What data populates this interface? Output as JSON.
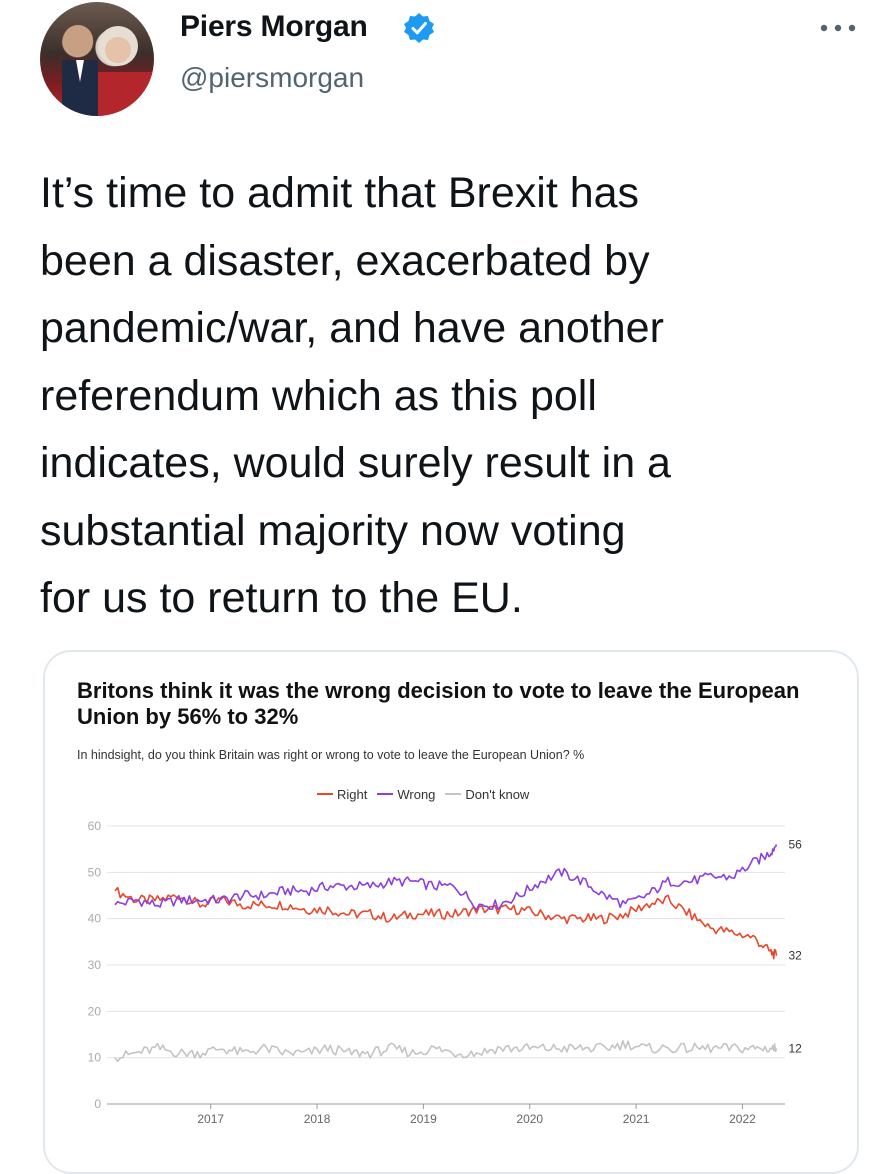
{
  "tweet": {
    "author_name": "Piers Morgan",
    "handle": "@piersmorgan",
    "text": "It’s time to admit that Brexit has\nbeen a disaster, exacerbated by\npandemic/war, and have another\nreferendum which as this poll\nindicates, would surely result in a\nsubstantial majority now voting\nfor us to return to the EU."
  },
  "colors": {
    "right": "#e8472b",
    "wrong": "#8c3fe0",
    "dont_know": "#c4c4c4",
    "verified": "#1d9bf0"
  },
  "chart_data": {
    "type": "line",
    "title": "Britons think it was the wrong decision to vote to leave the European Union by 56% to 32%",
    "subtitle": "In hindsight, do you think Britain was right or wrong to vote to leave the European Union? %",
    "ylim": [
      0,
      60
    ],
    "y_ticks": [
      "0",
      "10",
      "20",
      "30",
      "40",
      "50",
      "60"
    ],
    "x_ticks": [
      "2017",
      "2018",
      "2019",
      "2020",
      "2021",
      "2022"
    ],
    "xlim": [
      2016.6,
      2022.9
    ],
    "grid": true,
    "legend_position": "top",
    "series": [
      {
        "name": "Right",
        "color": "#e8472b",
        "end_label": "32",
        "points": [
          [
            2016.6,
            46
          ],
          [
            2016.8,
            44
          ],
          [
            2017.0,
            44
          ],
          [
            2017.2,
            45
          ],
          [
            2017.4,
            43
          ],
          [
            2017.6,
            44
          ],
          [
            2017.8,
            43
          ],
          [
            2018.0,
            43
          ],
          [
            2018.2,
            43
          ],
          [
            2018.4,
            42
          ],
          [
            2018.6,
            42
          ],
          [
            2018.8,
            41
          ],
          [
            2019.0,
            41
          ],
          [
            2019.2,
            40
          ],
          [
            2019.4,
            41
          ],
          [
            2019.6,
            41
          ],
          [
            2019.8,
            41
          ],
          [
            2020.0,
            42
          ],
          [
            2020.2,
            42
          ],
          [
            2020.4,
            42
          ],
          [
            2020.6,
            41
          ],
          [
            2020.8,
            40
          ],
          [
            2021.0,
            40
          ],
          [
            2021.2,
            40
          ],
          [
            2021.4,
            41
          ],
          [
            2021.6,
            43
          ],
          [
            2021.8,
            44
          ],
          [
            2022.0,
            41
          ],
          [
            2022.2,
            38
          ],
          [
            2022.4,
            37
          ],
          [
            2022.6,
            36
          ],
          [
            2022.75,
            33
          ],
          [
            2022.82,
            32
          ]
        ]
      },
      {
        "name": "Wrong",
        "color": "#8c3fe0",
        "end_label": "56",
        "points": [
          [
            2016.6,
            43
          ],
          [
            2016.8,
            44
          ],
          [
            2017.0,
            43
          ],
          [
            2017.2,
            44
          ],
          [
            2017.4,
            44
          ],
          [
            2017.6,
            44
          ],
          [
            2017.8,
            45
          ],
          [
            2018.0,
            45
          ],
          [
            2018.2,
            46
          ],
          [
            2018.4,
            46
          ],
          [
            2018.6,
            47
          ],
          [
            2018.8,
            47
          ],
          [
            2019.0,
            47
          ],
          [
            2019.2,
            48
          ],
          [
            2019.4,
            48
          ],
          [
            2019.6,
            47
          ],
          [
            2019.8,
            47
          ],
          [
            2020.0,
            43
          ],
          [
            2020.2,
            43
          ],
          [
            2020.4,
            45
          ],
          [
            2020.6,
            48
          ],
          [
            2020.8,
            50
          ],
          [
            2021.0,
            48
          ],
          [
            2021.2,
            45
          ],
          [
            2021.4,
            43
          ],
          [
            2021.6,
            45
          ],
          [
            2021.8,
            48
          ],
          [
            2022.0,
            48
          ],
          [
            2022.2,
            49
          ],
          [
            2022.4,
            49
          ],
          [
            2022.6,
            52
          ],
          [
            2022.75,
            54
          ],
          [
            2022.82,
            56
          ]
        ]
      },
      {
        "name": "Don't know",
        "color": "#c4c4c4",
        "end_label": "12",
        "points": [
          [
            2016.6,
            10
          ],
          [
            2016.8,
            11
          ],
          [
            2017.0,
            12
          ],
          [
            2017.2,
            11
          ],
          [
            2017.4,
            11
          ],
          [
            2017.6,
            12
          ],
          [
            2017.8,
            11
          ],
          [
            2018.0,
            12
          ],
          [
            2018.2,
            11
          ],
          [
            2018.4,
            11
          ],
          [
            2018.6,
            12
          ],
          [
            2018.8,
            11
          ],
          [
            2019.0,
            11
          ],
          [
            2019.2,
            12
          ],
          [
            2019.4,
            11
          ],
          [
            2019.6,
            12
          ],
          [
            2019.8,
            11
          ],
          [
            2020.0,
            11
          ],
          [
            2020.2,
            12
          ],
          [
            2020.4,
            12
          ],
          [
            2020.6,
            12
          ],
          [
            2020.8,
            12
          ],
          [
            2021.0,
            12
          ],
          [
            2021.2,
            12
          ],
          [
            2021.4,
            13
          ],
          [
            2021.6,
            12
          ],
          [
            2021.8,
            12
          ],
          [
            2022.0,
            12
          ],
          [
            2022.2,
            12
          ],
          [
            2022.4,
            12
          ],
          [
            2022.6,
            12
          ],
          [
            2022.75,
            12
          ],
          [
            2022.82,
            12
          ]
        ]
      }
    ]
  }
}
